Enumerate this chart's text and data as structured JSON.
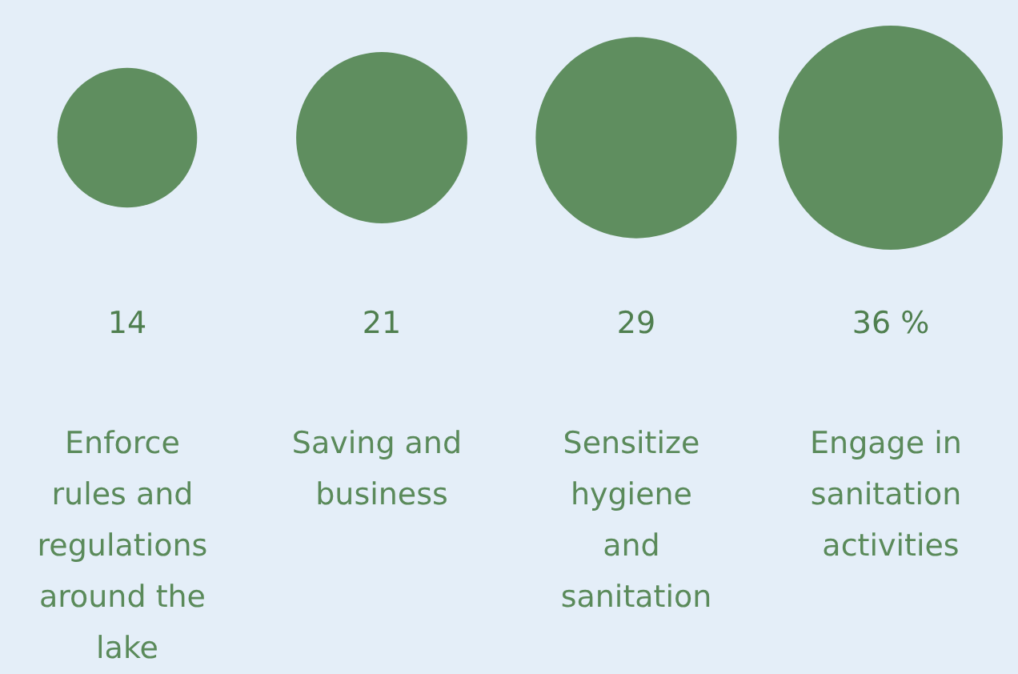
{
  "chart_data": {
    "type": "other",
    "categories": [
      "Enforce rules and regulations around the lake",
      "Saving and business",
      "Sensitize hygiene and sanitation",
      "Engage in sanitation activities"
    ],
    "values": [
      14,
      21,
      29,
      36
    ],
    "value_labels": [
      "14",
      "21",
      "29",
      "36 %"
    ],
    "color": "#5f8e5f"
  }
}
